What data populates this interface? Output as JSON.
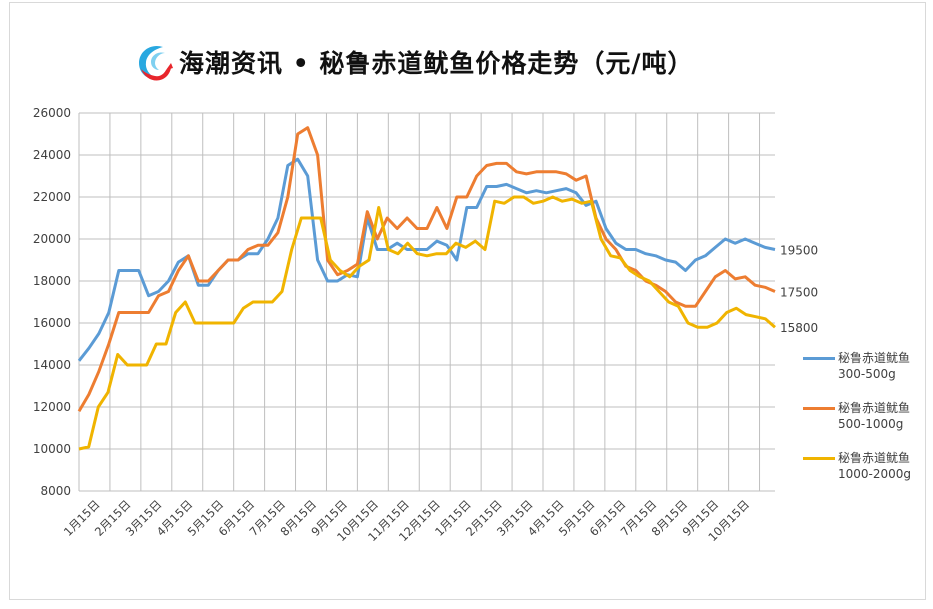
{
  "title": "海潮资讯 • 秘鲁赤道鱿鱼价格走势（元/吨）",
  "logo": {
    "icon": "haichao-logo-icon",
    "colors": [
      "#29a8e0",
      "#e8262c"
    ]
  },
  "chart_data": {
    "type": "line",
    "title": "海潮资讯 • 秘鲁赤道鱿鱼价格走势（元/吨）",
    "xlabel": "",
    "ylabel": "",
    "ylim": [
      8000,
      26000
    ],
    "yticks": [
      8000,
      10000,
      12000,
      14000,
      16000,
      18000,
      20000,
      22000,
      24000,
      26000
    ],
    "grid": true,
    "legend_position": "right",
    "categories": [
      "1月15日",
      "2月15日",
      "3月15日",
      "4月15日",
      "5月15日",
      "6月15日",
      "7月15日",
      "8月15日",
      "9月15日",
      "10月15日",
      "11月15日",
      "12月15日",
      "1月15日",
      "2月15日",
      "3月15日",
      "4月15日",
      "5月15日",
      "6月15日",
      "7月15日",
      "8月15日",
      "9月15日",
      "10月15日"
    ],
    "series": [
      {
        "name": "秘鲁赤道鱿鱼 300-500g",
        "color": "#5b9bd5",
        "end_label": "19500",
        "values": [
          14200,
          14800,
          15500,
          16500,
          18500,
          18500,
          18500,
          17300,
          17500,
          18000,
          18900,
          19200,
          17800,
          17800,
          18500,
          19000,
          19000,
          19300,
          19300,
          20000,
          21000,
          23500,
          23800,
          23000,
          19000,
          18000,
          18000,
          18300,
          18200,
          21000,
          19500,
          19500,
          19800,
          19500,
          19500,
          19500,
          19900,
          19700,
          19000,
          21500,
          21500,
          22500,
          22500,
          22600,
          22400,
          22200,
          22300,
          22200,
          22300,
          22400,
          22200,
          21600,
          21800,
          20500,
          19800,
          19500,
          19500,
          19300,
          19200,
          19000,
          18900,
          18500,
          19000,
          19200,
          19600,
          20000,
          19800,
          20000,
          19800,
          19600,
          19500
        ]
      },
      {
        "name": "秘鲁赤道鱿鱼 500-1000g",
        "color": "#ed7d31",
        "end_label": "17500",
        "values": [
          11800,
          12600,
          13700,
          15000,
          16500,
          16500,
          16500,
          16500,
          17300,
          17500,
          18500,
          19200,
          18000,
          18000,
          18500,
          19000,
          19000,
          19500,
          19700,
          19700,
          20300,
          22000,
          25000,
          25300,
          24000,
          19000,
          18300,
          18500,
          18800,
          21300,
          20000,
          21000,
          20500,
          21000,
          20500,
          20500,
          21500,
          20500,
          22000,
          22000,
          23000,
          23500,
          23600,
          23600,
          23200,
          23100,
          23200,
          23200,
          23200,
          23100,
          22800,
          23000,
          21000,
          20000,
          19500,
          18700,
          18500,
          18000,
          17800,
          17500,
          17000,
          16800,
          16800,
          17500,
          18200,
          18500,
          18100,
          18200,
          17800,
          17700,
          17500
        ]
      },
      {
        "name": "秘鲁赤道鱿鱼 1000-2000g",
        "color": "#f0b400",
        "end_label": "15800",
        "values": [
          10000,
          10100,
          12000,
          12700,
          14500,
          14000,
          14000,
          14000,
          15000,
          15000,
          16500,
          17000,
          16000,
          16000,
          16000,
          16000,
          16000,
          16700,
          17000,
          17000,
          17000,
          17500,
          19500,
          21000,
          21000,
          21000,
          19000,
          18500,
          18200,
          18700,
          19000,
          21500,
          19500,
          19300,
          19800,
          19300,
          19200,
          19300,
          19300,
          19800,
          19600,
          19900,
          19500,
          21800,
          21700,
          22000,
          22000,
          21700,
          21800,
          22000,
          21800,
          21900,
          21700,
          21800,
          20000,
          19200,
          19100,
          18500,
          18200,
          18000,
          17500,
          17000,
          16800,
          16000,
          15800,
          15800,
          16000,
          16500,
          16700,
          16400,
          16300,
          16200,
          15800
        ]
      }
    ]
  }
}
